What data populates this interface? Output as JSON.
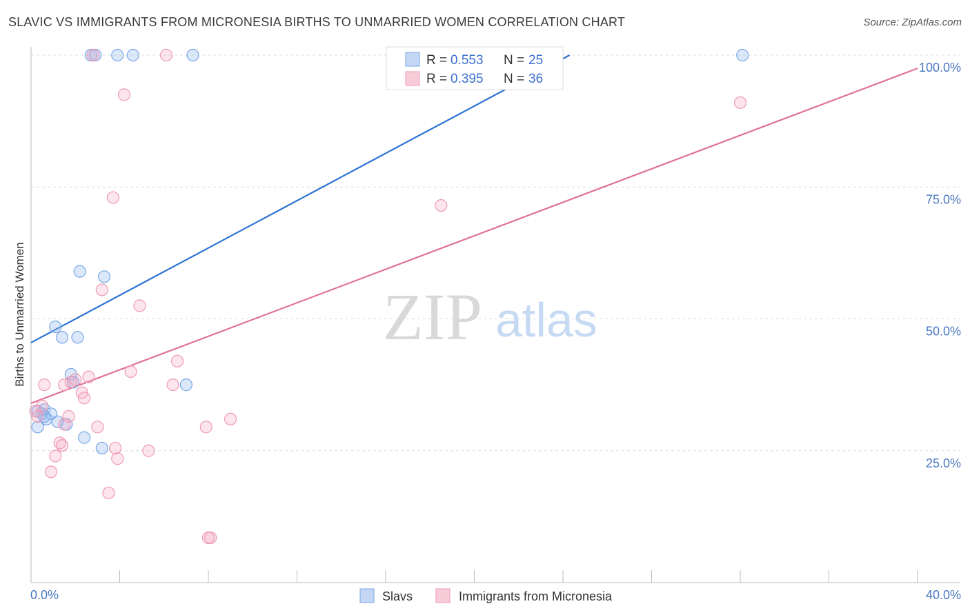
{
  "title": "SLAVIC VS IMMIGRANTS FROM MICRONESIA BIRTHS TO UNMARRIED WOMEN CORRELATION CHART",
  "source": "Source: ZipAtlas.com",
  "watermark": {
    "zip": "ZIP",
    "atlas": "atlas"
  },
  "colors": {
    "slavs": "#6fa0e8",
    "slavs_line": "#2b72d4",
    "micronesia": "#f0a3bb",
    "micronesia_line": "#e0709a",
    "tick": "#4a78c2"
  },
  "legend": {
    "series": [
      {
        "r_label": "R =",
        "r_value": "0.553",
        "n_label": "N =",
        "n_value": "25"
      },
      {
        "r_label": "R =",
        "r_value": "0.395",
        "n_label": "N =",
        "n_value": "36"
      }
    ]
  },
  "chart_data": {
    "type": "scatter",
    "title": "SLAVIC VS IMMIGRANTS FROM MICRONESIA BIRTHS TO UNMARRIED WOMEN CORRELATION CHART",
    "xlabel": "",
    "ylabel": "Births to Unmarried Women",
    "xlim": [
      0,
      40
    ],
    "ylim": [
      0,
      100
    ],
    "x_tick_labels": [
      "0.0%",
      "40.0%"
    ],
    "y_tick_labels": [
      "25.0%",
      "50.0%",
      "75.0%",
      "100.0%"
    ],
    "y_ticks": [
      25,
      50,
      75,
      100
    ],
    "series": [
      {
        "name": "Slavs",
        "r": 0.553,
        "n": 25,
        "trend": {
          "x": [
            0,
            24.3
          ],
          "y": [
            45.5,
            100
          ]
        },
        "points": [
          {
            "x": 2.7,
            "y": 100
          },
          {
            "x": 2.9,
            "y": 100
          },
          {
            "x": 3.9,
            "y": 100
          },
          {
            "x": 4.6,
            "y": 100
          },
          {
            "x": 7.3,
            "y": 100
          },
          {
            "x": 32.1,
            "y": 100
          },
          {
            "x": 2.2,
            "y": 59
          },
          {
            "x": 3.3,
            "y": 58
          },
          {
            "x": 1.1,
            "y": 48.5
          },
          {
            "x": 1.4,
            "y": 46.5
          },
          {
            "x": 2.1,
            "y": 46.5
          },
          {
            "x": 1.8,
            "y": 39.5
          },
          {
            "x": 1.9,
            "y": 38
          },
          {
            "x": 7.0,
            "y": 37.5
          },
          {
            "x": 0.3,
            "y": 32.5
          },
          {
            "x": 0.6,
            "y": 32.8
          },
          {
            "x": 0.5,
            "y": 32
          },
          {
            "x": 0.9,
            "y": 32
          },
          {
            "x": 0.7,
            "y": 31
          },
          {
            "x": 1.2,
            "y": 30.5
          },
          {
            "x": 1.6,
            "y": 30
          },
          {
            "x": 0.3,
            "y": 29.5
          },
          {
            "x": 2.4,
            "y": 27.5
          },
          {
            "x": 3.2,
            "y": 25.5
          },
          {
            "x": 0.6,
            "y": 31.5
          }
        ]
      },
      {
        "name": "Immigrants from Micronesia",
        "r": 0.395,
        "n": 36,
        "trend": {
          "x": [
            0,
            40
          ],
          "y": [
            34,
            97.5
          ]
        },
        "points": [
          {
            "x": 2.8,
            "y": 100
          },
          {
            "x": 6.1,
            "y": 100
          },
          {
            "x": 4.2,
            "y": 92.5
          },
          {
            "x": 32.0,
            "y": 91
          },
          {
            "x": 3.7,
            "y": 73
          },
          {
            "x": 18.5,
            "y": 71.5
          },
          {
            "x": 3.2,
            "y": 55.5
          },
          {
            "x": 4.9,
            "y": 52.5
          },
          {
            "x": 6.6,
            "y": 42
          },
          {
            "x": 4.5,
            "y": 40
          },
          {
            "x": 2.6,
            "y": 39
          },
          {
            "x": 2.0,
            "y": 38.5
          },
          {
            "x": 0.6,
            "y": 37.5
          },
          {
            "x": 1.5,
            "y": 37.5
          },
          {
            "x": 6.4,
            "y": 37.5
          },
          {
            "x": 2.3,
            "y": 36
          },
          {
            "x": 2.4,
            "y": 35
          },
          {
            "x": 0.5,
            "y": 33.5
          },
          {
            "x": 0.2,
            "y": 32.5
          },
          {
            "x": 0.3,
            "y": 31.5
          },
          {
            "x": 1.7,
            "y": 31.5
          },
          {
            "x": 9.0,
            "y": 31
          },
          {
            "x": 1.5,
            "y": 30
          },
          {
            "x": 3.0,
            "y": 29.5
          },
          {
            "x": 7.9,
            "y": 29.5
          },
          {
            "x": 1.3,
            "y": 26.5
          },
          {
            "x": 1.4,
            "y": 26
          },
          {
            "x": 3.8,
            "y": 25.5
          },
          {
            "x": 5.3,
            "y": 25
          },
          {
            "x": 1.1,
            "y": 24
          },
          {
            "x": 3.9,
            "y": 23.5
          },
          {
            "x": 0.9,
            "y": 21
          },
          {
            "x": 3.5,
            "y": 17
          },
          {
            "x": 8.1,
            "y": 8.5
          },
          {
            "x": 8.0,
            "y": 8.5
          },
          {
            "x": 1.8,
            "y": 38
          }
        ]
      }
    ]
  },
  "bottom_legend": {
    "slavs": "Slavs",
    "micronesia": "Immigrants from Micronesia"
  }
}
